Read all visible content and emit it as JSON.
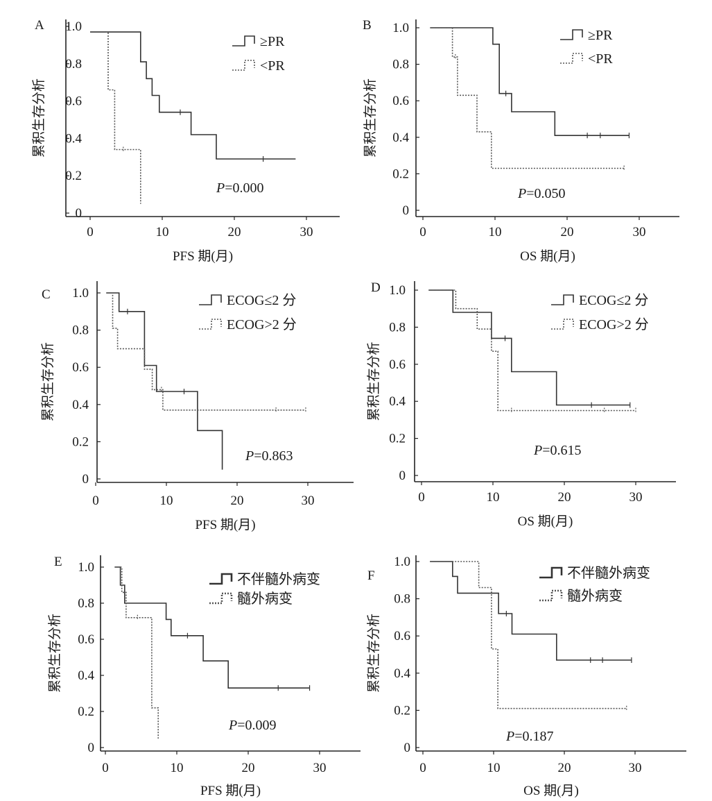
{
  "chart_data": [
    {
      "type": "line",
      "panel_label": "A",
      "xlabel": "PFS 期(月)",
      "ylabel": "累积生存分析",
      "xlim": [
        0,
        35
      ],
      "ylim": [
        0,
        1.0
      ],
      "xticks": [
        "0",
        "10",
        "20",
        "30"
      ],
      "yticks": [
        "0",
        "0.2",
        "0.4",
        "0.6",
        "0.8",
        "1.0"
      ],
      "p_label": "P",
      "p_value": "=0.000",
      "legend_style": "thin",
      "series": [
        {
          "name": "≥PR",
          "style": "solid",
          "steps": [
            [
              0,
              0.97
            ],
            [
              7,
              0.81
            ],
            [
              7.8,
              0.72
            ],
            [
              8.6,
              0.63
            ],
            [
              9.6,
              0.54
            ],
            [
              14,
              0.42
            ],
            [
              17.5,
              0.29
            ],
            [
              28.5,
              0.29
            ]
          ],
          "censors": [
            12.5,
            24
          ]
        },
        {
          "name": "<PR",
          "style": "dotted",
          "steps": [
            [
              2.2,
              0.97
            ],
            [
              2.5,
              0.66
            ],
            [
              3.4,
              0.34
            ],
            [
              7.0,
              0.05
            ],
            [
              7.0,
              0.05
            ]
          ],
          "censors": [
            4.6
          ]
        }
      ]
    },
    {
      "type": "line",
      "panel_label": "B",
      "xlabel": "OS 期(月)",
      "ylabel": "累积生存分析",
      "xlim": [
        0,
        35
      ],
      "ylim": [
        0,
        1.0
      ],
      "xticks": [
        "0",
        "10",
        "20",
        "30"
      ],
      "yticks": [
        "0",
        "0.2",
        "0.4",
        "0.6",
        "0.8",
        "1.0"
      ],
      "p_label": "P",
      "p_value": "=0.050",
      "legend_style": "thin",
      "series": [
        {
          "name": "≥PR",
          "style": "solid",
          "steps": [
            [
              1,
              1.0
            ],
            [
              9.7,
              0.91
            ],
            [
              10.6,
              0.64
            ],
            [
              12.3,
              0.54
            ],
            [
              18.3,
              0.41
            ],
            [
              28.6,
              0.41
            ]
          ],
          "censors": [
            11.5,
            22.8,
            24.6,
            28.6
          ]
        },
        {
          "name": "<PR",
          "style": "dotted",
          "steps": [
            [
              1,
              1.0
            ],
            [
              4.1,
              0.84
            ],
            [
              4.8,
              0.63
            ],
            [
              7.5,
              0.43
            ],
            [
              9.5,
              0.23
            ],
            [
              27.9,
              0.23
            ]
          ],
          "censors": [
            4.5,
            27.9
          ]
        }
      ]
    },
    {
      "type": "line",
      "panel_label": "C",
      "xlabel": "PFS 期(月)",
      "ylabel": "累积生存分析",
      "xlim": [
        0,
        35
      ],
      "ylim": [
        0,
        1.0
      ],
      "xticks": [
        "0",
        "10",
        "20",
        "30"
      ],
      "yticks": [
        "0",
        "0.2",
        "0.4",
        "0.6",
        "0.8",
        "1.0"
      ],
      "p_label": "P",
      "p_value": "=0.863",
      "legend_style": "thin",
      "series": [
        {
          "name": "ECOG≤2 分",
          "style": "solid",
          "steps": [
            [
              1.5,
              1.0
            ],
            [
              3.3,
              0.9
            ],
            [
              6.9,
              0.61
            ],
            [
              8.6,
              0.47
            ],
            [
              14.4,
              0.26
            ],
            [
              17.9,
              0.05
            ],
            [
              17.9,
              0.05
            ]
          ],
          "censors": [
            4.5,
            12.5
          ]
        },
        {
          "name": "ECOG>2 分",
          "style": "dotted",
          "steps": [
            [
              1.5,
              1.0
            ],
            [
              2.4,
              0.81
            ],
            [
              3.1,
              0.7
            ],
            [
              6.9,
              0.59
            ],
            [
              8.0,
              0.48
            ],
            [
              9.5,
              0.37
            ],
            [
              29.7,
              0.37
            ]
          ],
          "censors": [
            9.3,
            25.5,
            29.7
          ]
        }
      ]
    },
    {
      "type": "line",
      "panel_label": "D",
      "xlabel": "OS 期(月)",
      "ylabel": "累积生存分析",
      "xlim": [
        0,
        35
      ],
      "ylim": [
        0,
        1.0
      ],
      "xticks": [
        "0",
        "10",
        "20",
        "30"
      ],
      "yticks": [
        "0",
        "0.2",
        "0.4",
        "0.6",
        "0.8",
        "1.0"
      ],
      "p_label": "P",
      "p_value": "=0.615",
      "legend_style": "thin",
      "series": [
        {
          "name": "ECOG≤2 分",
          "style": "solid",
          "steps": [
            [
              1,
              1.0
            ],
            [
              4.4,
              0.88
            ],
            [
              9.8,
              0.74
            ],
            [
              12.6,
              0.56
            ],
            [
              18.9,
              0.38
            ],
            [
              29.2,
              0.38
            ]
          ],
          "censors": [
            11.7,
            23.8,
            29.2
          ]
        },
        {
          "name": "ECOG>2 分",
          "style": "dotted",
          "steps": [
            [
              1,
              1.0
            ],
            [
              4.8,
              0.9
            ],
            [
              7.8,
              0.79
            ],
            [
              9.8,
              0.67
            ],
            [
              10.7,
              0.35
            ],
            [
              30.0,
              0.35
            ]
          ],
          "censors": [
            12.6,
            25.6,
            30.0
          ]
        }
      ]
    },
    {
      "type": "line",
      "panel_label": "E",
      "xlabel": "PFS 期(月)",
      "ylabel": "累积生存分析",
      "xlim": [
        0,
        35
      ],
      "ylim": [
        0,
        1.0
      ],
      "xticks": [
        "0",
        "10",
        "20",
        "30"
      ],
      "yticks": [
        "0",
        "0.2",
        "0.4",
        "0.6",
        "0.8",
        "1.0"
      ],
      "p_label": "P",
      "p_value": "=0.009",
      "legend_style": "thick",
      "series": [
        {
          "name": "不伴髓外病变",
          "style": "solid",
          "steps": [
            [
              1.3,
              1.0
            ],
            [
              2.1,
              0.9
            ],
            [
              2.7,
              0.8
            ],
            [
              8.5,
              0.71
            ],
            [
              9.2,
              0.62
            ],
            [
              13.7,
              0.48
            ],
            [
              17.2,
              0.33
            ],
            [
              28.6,
              0.33
            ]
          ],
          "censors": [
            11.5,
            24.2,
            28.6
          ]
        },
        {
          "name": "髓外病变",
          "style": "dotted",
          "steps": [
            [
              1.3,
              1.0
            ],
            [
              2.3,
              0.86
            ],
            [
              2.9,
              0.72
            ],
            [
              6.5,
              0.22
            ],
            [
              7.4,
              0.05
            ],
            [
              7.4,
              0.05
            ]
          ],
          "censors": [
            4.5
          ]
        }
      ]
    },
    {
      "type": "line",
      "panel_label": "F",
      "xlabel": "OS 期(月)",
      "ylabel": "累积生存分析",
      "xlim": [
        0,
        35
      ],
      "ylim": [
        0,
        1.0
      ],
      "xticks": [
        "0",
        "10",
        "20",
        "30"
      ],
      "yticks": [
        "0",
        "0.2",
        "0.4",
        "0.6",
        "0.8",
        "1.0"
      ],
      "p_label": "P",
      "p_value": "=0.187",
      "legend_style": "thick",
      "series": [
        {
          "name": "不伴髓外病变",
          "style": "solid",
          "steps": [
            [
              1,
              1.0
            ],
            [
              4.2,
              0.92
            ],
            [
              4.9,
              0.83
            ],
            [
              10.7,
              0.72
            ],
            [
              12.6,
              0.61
            ],
            [
              18.9,
              0.47
            ],
            [
              29.5,
              0.47
            ]
          ],
          "censors": [
            11.8,
            23.7,
            25.4,
            29.5
          ]
        },
        {
          "name": "髓外病变",
          "style": "dotted",
          "steps": [
            [
              1,
              1.0
            ],
            [
              7.9,
              0.86
            ],
            [
              9.7,
              0.53
            ],
            [
              10.6,
              0.21
            ],
            [
              28.8,
              0.21
            ]
          ],
          "censors": [
            28.8
          ]
        }
      ]
    }
  ]
}
